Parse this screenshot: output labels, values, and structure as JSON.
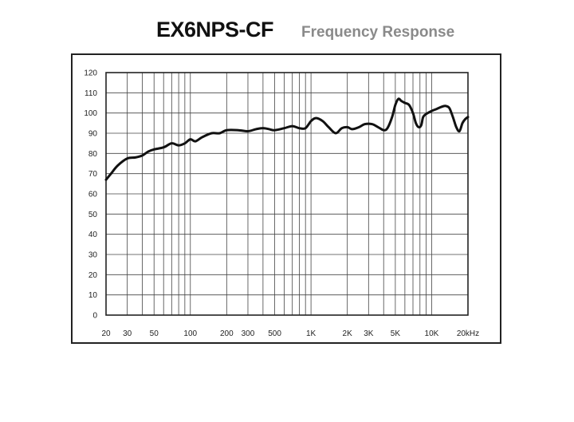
{
  "header": {
    "title": "EX6NPS-CF",
    "subtitle": "Frequency Response"
  },
  "chart_data": {
    "type": "line",
    "title": "EX6NPS-CF",
    "subtitle": "Frequency Response",
    "xscale": "log",
    "xlim": [
      20,
      20000
    ],
    "ylim": [
      0,
      120
    ],
    "grid": true,
    "y_ticks": [
      0,
      10,
      20,
      30,
      40,
      50,
      60,
      70,
      80,
      90,
      100,
      110,
      120
    ],
    "x_ticks": [
      {
        "value": 20,
        "label": "20"
      },
      {
        "value": 30,
        "label": "30"
      },
      {
        "value": 50,
        "label": "50"
      },
      {
        "value": 100,
        "label": "100"
      },
      {
        "value": 200,
        "label": "200"
      },
      {
        "value": 300,
        "label": "300"
      },
      {
        "value": 500,
        "label": "500"
      },
      {
        "value": 1000,
        "label": "1K"
      },
      {
        "value": 2000,
        "label": "2K"
      },
      {
        "value": 3000,
        "label": "3K"
      },
      {
        "value": 5000,
        "label": "5K"
      },
      {
        "value": 10000,
        "label": "10K"
      },
      {
        "value": 20000,
        "label": "20kHz"
      }
    ],
    "series": [
      {
        "color": "#111111",
        "points": [
          [
            20,
            67
          ],
          [
            22,
            70
          ],
          [
            25,
            74
          ],
          [
            30,
            77.5
          ],
          [
            35,
            78
          ],
          [
            40,
            79
          ],
          [
            45,
            81
          ],
          [
            50,
            82
          ],
          [
            60,
            83
          ],
          [
            70,
            85
          ],
          [
            80,
            84
          ],
          [
            90,
            85
          ],
          [
            100,
            87
          ],
          [
            110,
            86
          ],
          [
            125,
            88
          ],
          [
            150,
            90
          ],
          [
            175,
            90
          ],
          [
            200,
            91.5
          ],
          [
            250,
            91.5
          ],
          [
            300,
            91
          ],
          [
            350,
            92
          ],
          [
            400,
            92.5
          ],
          [
            450,
            92
          ],
          [
            500,
            91.5
          ],
          [
            600,
            92.5
          ],
          [
            700,
            93.5
          ],
          [
            800,
            92.5
          ],
          [
            900,
            92.5
          ],
          [
            1000,
            96
          ],
          [
            1100,
            97.5
          ],
          [
            1250,
            96
          ],
          [
            1400,
            93
          ],
          [
            1600,
            90
          ],
          [
            1800,
            92.5
          ],
          [
            2000,
            93
          ],
          [
            2200,
            92
          ],
          [
            2500,
            93
          ],
          [
            2800,
            94.5
          ],
          [
            3200,
            94.5
          ],
          [
            3600,
            93
          ],
          [
            4000,
            91.5
          ],
          [
            4300,
            92.5
          ],
          [
            4700,
            98
          ],
          [
            5000,
            104
          ],
          [
            5300,
            107
          ],
          [
            5600,
            106
          ],
          [
            6000,
            105
          ],
          [
            6500,
            104
          ],
          [
            7000,
            100
          ],
          [
            7400,
            95
          ],
          [
            7800,
            93
          ],
          [
            8200,
            94
          ],
          [
            8500,
            98
          ],
          [
            9000,
            99.5
          ],
          [
            10000,
            101
          ],
          [
            11000,
            102
          ],
          [
            12000,
            103
          ],
          [
            13000,
            103.5
          ],
          [
            14000,
            102.5
          ],
          [
            15000,
            98
          ],
          [
            16000,
            93
          ],
          [
            17000,
            91
          ],
          [
            18000,
            95
          ],
          [
            19000,
            97
          ],
          [
            20000,
            98
          ]
        ]
      }
    ]
  }
}
